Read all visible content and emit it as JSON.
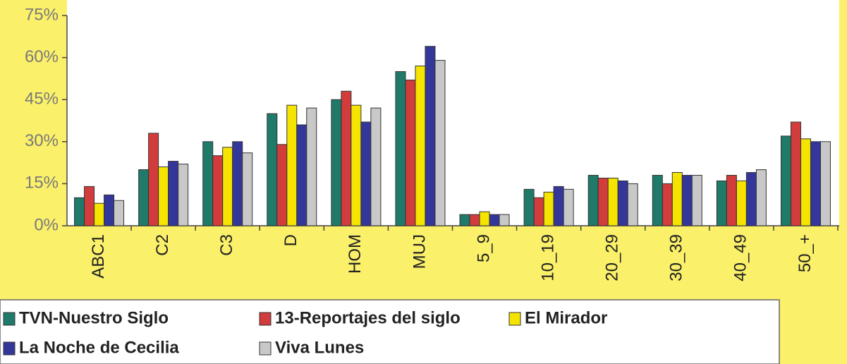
{
  "chart_data": {
    "type": "bar",
    "categories": [
      "ABC1",
      "C2",
      "C3",
      "D",
      "HOM",
      "MUJ",
      "5_9",
      "10_19",
      "20_29",
      "30_39",
      "40_49",
      "50_+"
    ],
    "series": [
      {
        "name": "TVN-Nuestro Siglo",
        "color": "#1f7a6a",
        "values": [
          10,
          20,
          30,
          40,
          45,
          55,
          4,
          13,
          18,
          18,
          16,
          32
        ]
      },
      {
        "name": "13-Reportajes del siglo",
        "color": "#d23c3c",
        "values": [
          14,
          33,
          25,
          29,
          48,
          52,
          4,
          10,
          17,
          15,
          18,
          37
        ]
      },
      {
        "name": "El Mirador",
        "color": "#f5e400",
        "values": [
          8,
          21,
          28,
          43,
          43,
          57,
          5,
          12,
          17,
          19,
          16,
          31
        ]
      },
      {
        "name": "La Noche de Cecilia",
        "color": "#34379a",
        "values": [
          11,
          23,
          30,
          36,
          37,
          64,
          4,
          14,
          16,
          18,
          19,
          30
        ]
      },
      {
        "name": "Viva Lunes",
        "color": "#c8c8c8",
        "values": [
          9,
          22,
          26,
          42,
          42,
          59,
          4,
          13,
          15,
          18,
          20,
          30
        ]
      }
    ],
    "ylim": [
      0,
      75
    ],
    "yticks": [
      {
        "value": 0,
        "label": "0%"
      },
      {
        "value": 15,
        "label": "15%"
      },
      {
        "value": 30,
        "label": "30%"
      },
      {
        "value": 45,
        "label": "45%"
      },
      {
        "value": 60,
        "label": "60%"
      },
      {
        "value": 75,
        "label": "75%"
      }
    ],
    "grid": false
  }
}
